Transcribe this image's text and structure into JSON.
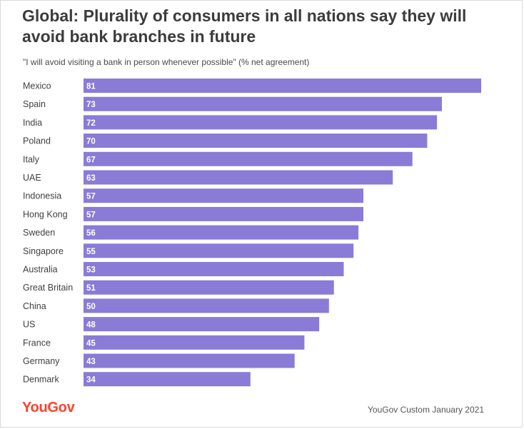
{
  "header": {
    "title": "Global: Plurality of consumers in all nations say they will avoid bank branches in future",
    "subtitle": "\"I will avoid visiting a bank in person whenever possible\" (% net agreement)"
  },
  "footer": {
    "brand": "YouGov",
    "source": "YouGov Custom January 2021"
  },
  "colors": {
    "bar": "#8a7bd6",
    "brand": "#ff412c"
  },
  "chart_data": {
    "type": "bar",
    "orientation": "horizontal",
    "title": "Global: Plurality of consumers in all nations say they will avoid bank branches in future",
    "subtitle": "\"I will avoid visiting a bank in person whenever possible\" (% net agreement)",
    "xlabel": "",
    "ylabel": "",
    "xlim": [
      0,
      81
    ],
    "grid": false,
    "categories": [
      "Mexico",
      "Spain",
      "India",
      "Poland",
      "Italy",
      "UAE",
      "Indonesia",
      "Hong Kong",
      "Sweden",
      "Singapore",
      "Australia",
      "Great Britain",
      "China",
      "US",
      "France",
      "Germany",
      "Denmark"
    ],
    "values": [
      81,
      73,
      72,
      70,
      67,
      63,
      57,
      57,
      56,
      55,
      53,
      51,
      50,
      48,
      45,
      43,
      34
    ]
  }
}
